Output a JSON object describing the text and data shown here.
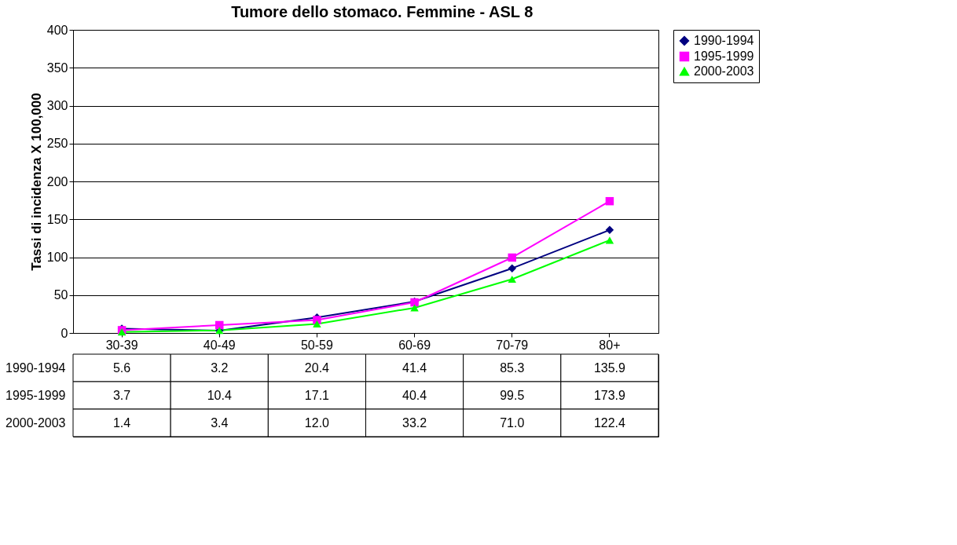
{
  "chart_data": {
    "type": "line",
    "title": "Tumore dello stomaco. Femmine - ASL 8",
    "ylabel": "Tassi di incidenza X 100,000",
    "categories": [
      "30-39",
      "40-49",
      "50-59",
      "60-69",
      "70-79",
      "80+"
    ],
    "ylim": [
      0,
      400
    ],
    "yticks": [
      0,
      50,
      100,
      150,
      200,
      250,
      300,
      350,
      400
    ],
    "grid": "y",
    "legend": "right",
    "series": [
      {
        "name": "1990-1994",
        "color": "#000080",
        "marker": "diamond",
        "values": [
          5.6,
          3.2,
          20.4,
          41.4,
          85.3,
          135.9
        ],
        "value_labels": [
          "5.6",
          "3.2",
          "20.4",
          "41.4",
          "85.3",
          "135.9"
        ]
      },
      {
        "name": "1995-1999",
        "color": "#ff00ff",
        "marker": "square",
        "values": [
          3.7,
          10.4,
          17.1,
          40.4,
          99.5,
          173.9
        ],
        "value_labels": [
          "3.7",
          "10.4",
          "17.1",
          "40.4",
          "99.5",
          "173.9"
        ]
      },
      {
        "name": "2000-2003",
        "color": "#00ff00",
        "marker": "triangle",
        "values": [
          1.4,
          3.4,
          12.0,
          33.2,
          71.0,
          122.4
        ],
        "value_labels": [
          "1.4",
          "3.4",
          "12.0",
          "33.2",
          "71.0",
          "122.4"
        ]
      }
    ]
  }
}
